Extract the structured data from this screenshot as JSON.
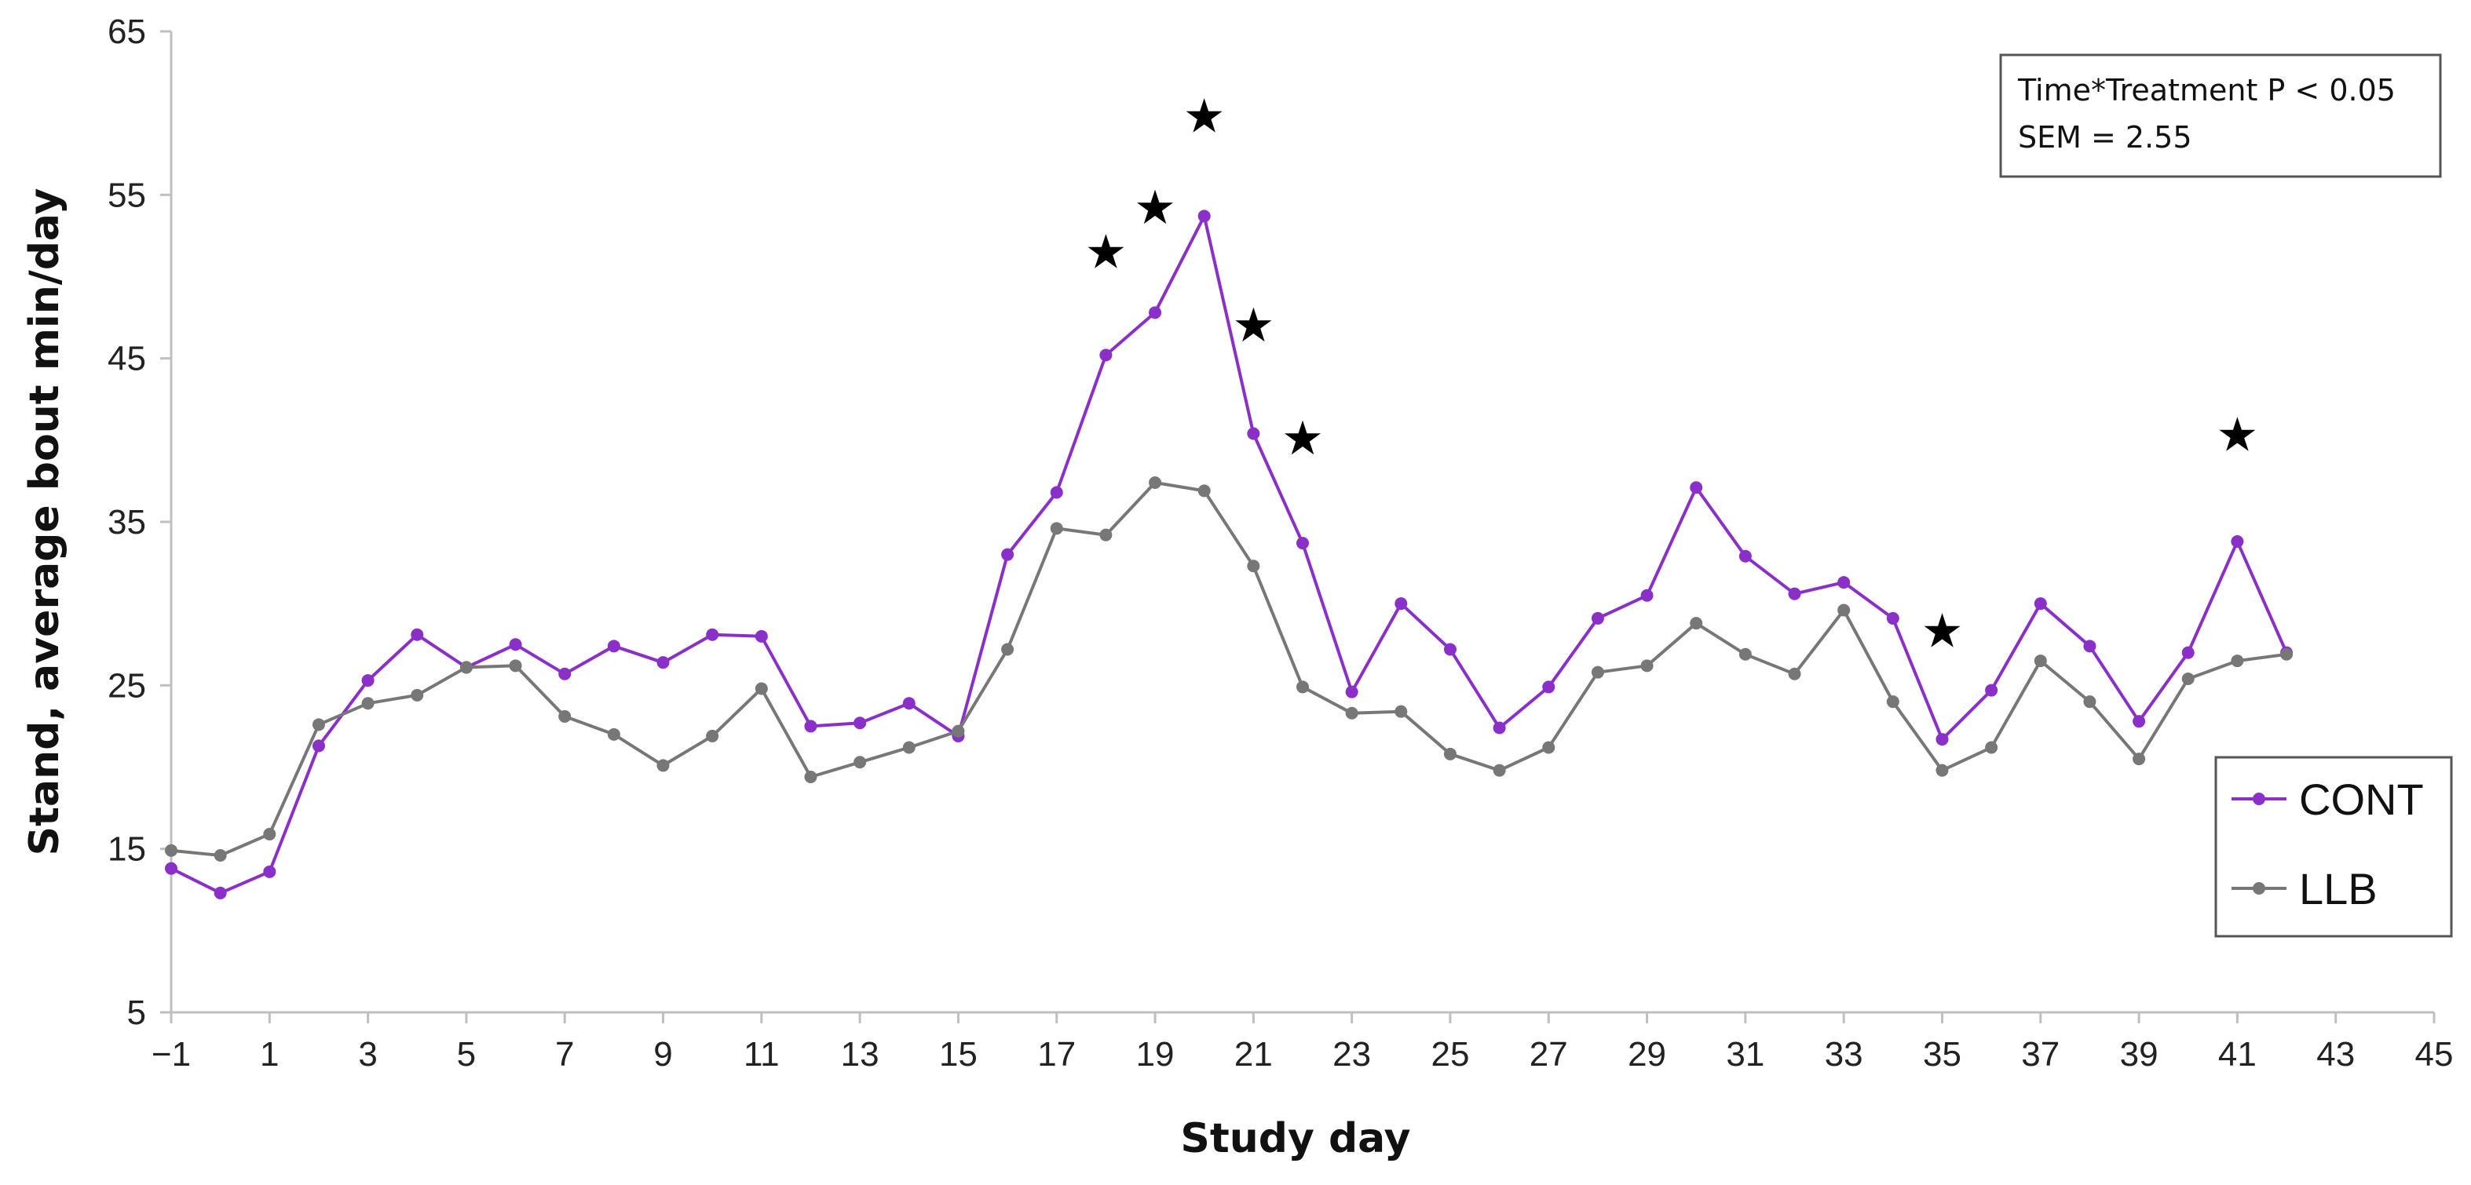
{
  "chart_data": {
    "type": "line",
    "xlabel": "Study day",
    "ylabel": "Stand, average bout min/day",
    "xlim": [
      -1,
      45
    ],
    "ylim": [
      5,
      65
    ],
    "x_ticks": [
      "−1",
      "1",
      "3",
      "5",
      "7",
      "9",
      "11",
      "13",
      "15",
      "17",
      "19",
      "21",
      "23",
      "25",
      "27",
      "29",
      "31",
      "33",
      "35",
      "37",
      "39",
      "41",
      "43",
      "45"
    ],
    "y_ticks": [
      "5",
      "15",
      "25",
      "35",
      "45",
      "55",
      "65"
    ],
    "x": [
      -1,
      0,
      1,
      2,
      3,
      4,
      5,
      6,
      7,
      8,
      9,
      10,
      11,
      12,
      13,
      14,
      15,
      16,
      17,
      18,
      19,
      20,
      21,
      22,
      23,
      24,
      25,
      26,
      27,
      28,
      29,
      30,
      31,
      32,
      33,
      34,
      35,
      36,
      37,
      38,
      39,
      40,
      41,
      42
    ],
    "series": [
      {
        "name": "CONT",
        "color": "#8b2fc9",
        "values": [
          13.8,
          12.3,
          13.6,
          21.3,
          25.3,
          28.1,
          26.1,
          27.5,
          25.7,
          27.4,
          26.4,
          28.1,
          28.0,
          22.5,
          22.7,
          23.9,
          21.9,
          33.0,
          36.8,
          45.2,
          47.8,
          53.7,
          40.4,
          33.7,
          24.6,
          30.0,
          27.2,
          22.4,
          24.9,
          29.1,
          30.5,
          37.1,
          32.9,
          30.6,
          31.3,
          29.1,
          21.7,
          24.7,
          30.0,
          27.4,
          22.8,
          27.0,
          33.8,
          27.0
        ]
      },
      {
        "name": "LLB",
        "color": "#777777",
        "values": [
          14.9,
          14.6,
          15.9,
          22.6,
          23.9,
          24.4,
          26.1,
          26.2,
          23.1,
          22.0,
          20.1,
          21.9,
          24.8,
          19.4,
          20.3,
          21.2,
          22.2,
          27.2,
          34.6,
          34.2,
          37.4,
          36.9,
          32.3,
          24.9,
          23.3,
          23.4,
          20.8,
          19.8,
          21.2,
          25.8,
          26.2,
          28.8,
          26.9,
          25.7,
          29.6,
          24.0,
          19.8,
          21.2,
          26.5,
          24.0,
          20.5,
          25.4,
          26.5,
          26.9
        ]
      }
    ],
    "significance_marker": "★",
    "significant_days": [
      {
        "x": 18,
        "y": 51.5
      },
      {
        "x": 19,
        "y": 54.2
      },
      {
        "x": 20,
        "y": 59.8
      },
      {
        "x": 21,
        "y": 47.0
      },
      {
        "x": 22,
        "y": 40.1
      },
      {
        "x": 35,
        "y": 28.3
      },
      {
        "x": 41,
        "y": 40.3
      }
    ],
    "annotation": [
      "Time*Treatment P < 0.05",
      "SEM = 2.55"
    ],
    "legend_position": "lower-right",
    "grid": false
  }
}
